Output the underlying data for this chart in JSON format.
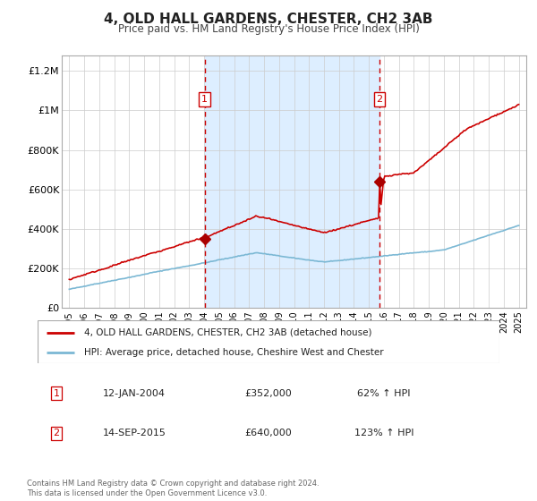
{
  "title": "4, OLD HALL GARDENS, CHESTER, CH2 3AB",
  "subtitle": "Price paid vs. HM Land Registry's House Price Index (HPI)",
  "legend_line1": "4, OLD HALL GARDENS, CHESTER, CH2 3AB (detached house)",
  "legend_line2": "HPI: Average price, detached house, Cheshire West and Chester",
  "annotation_footer": "Contains HM Land Registry data © Crown copyright and database right 2024.\nThis data is licensed under the Open Government Licence v3.0.",
  "sale1_label": "1",
  "sale1_date": "12-JAN-2004",
  "sale1_price": "£352,000",
  "sale1_hpi": "62% ↑ HPI",
  "sale2_label": "2",
  "sale2_date": "14-SEP-2015",
  "sale2_price": "£640,000",
  "sale2_hpi": "123% ↑ HPI",
  "hpi_color": "#7bb8d4",
  "price_color": "#cc0000",
  "shade_color": "#ddeeff",
  "marker_color": "#aa0000",
  "sale1_x": 2004.04,
  "sale1_y": 352000,
  "sale2_x": 2015.71,
  "sale2_y": 640000,
  "ylim": [
    0,
    1280000
  ],
  "xlim": [
    1994.5,
    2025.5
  ],
  "yticks": [
    0,
    200000,
    400000,
    600000,
    800000,
    1000000,
    1200000
  ],
  "ytick_labels": [
    "£0",
    "£200K",
    "£400K",
    "£600K",
    "£800K",
    "£1M",
    "£1.2M"
  ],
  "xticks": [
    1995,
    1996,
    1997,
    1998,
    1999,
    2000,
    2001,
    2002,
    2003,
    2004,
    2005,
    2006,
    2007,
    2008,
    2009,
    2010,
    2011,
    2012,
    2013,
    2014,
    2015,
    2016,
    2017,
    2018,
    2019,
    2020,
    2021,
    2022,
    2023,
    2024,
    2025
  ]
}
